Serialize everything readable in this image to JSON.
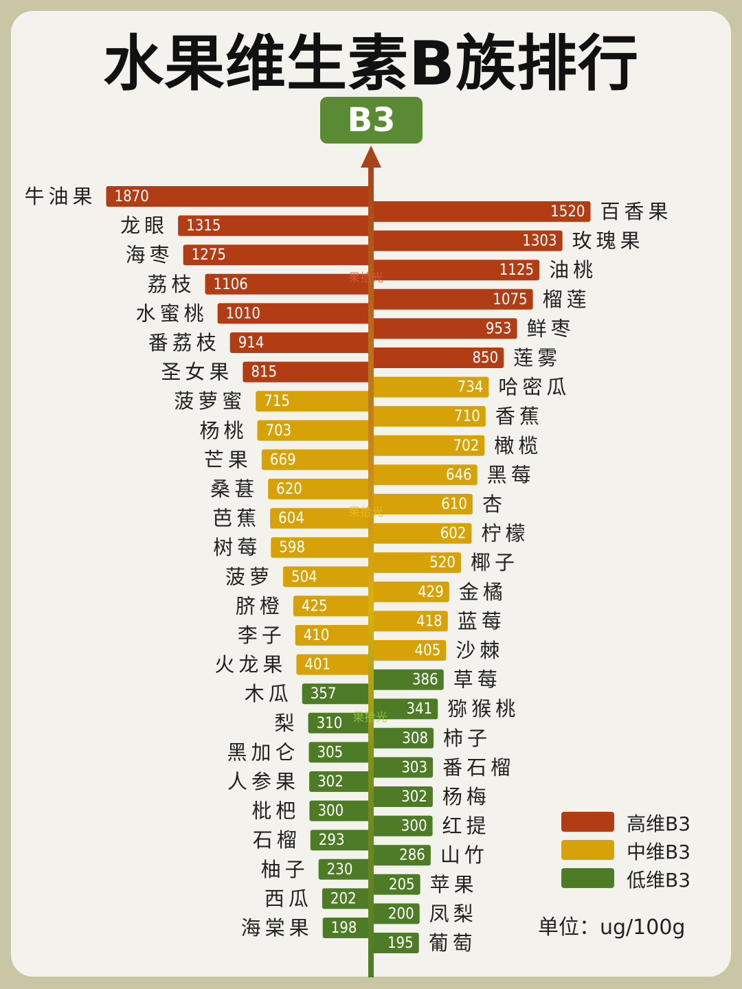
{
  "title": "水果维生素B族排行",
  "badge": "B3",
  "watermark": "果拾光",
  "unit_label": "单位：ug/100g",
  "colors": {
    "high": "#b23d15",
    "mid": "#d6a208",
    "low": "#4e7c26",
    "badge": "#5b8a35",
    "background": "#f3f2ec"
  },
  "legend": [
    {
      "label": "高维B3",
      "color": "#b23d15"
    },
    {
      "label": "中维B3",
      "color": "#d6a208"
    },
    {
      "label": "低维B3",
      "color": "#4e7c26"
    }
  ],
  "chart_data": {
    "type": "bar",
    "orientation": "horizontal-diverging",
    "title": "水果维生素B族排行",
    "unit": "ug/100g",
    "left_series": [
      {
        "name": "牛油果",
        "value": 1870,
        "level": "high"
      },
      {
        "name": "龙眼",
        "value": 1315,
        "level": "high"
      },
      {
        "name": "海枣",
        "value": 1275,
        "level": "high"
      },
      {
        "name": "荔枝",
        "value": 1106,
        "level": "high"
      },
      {
        "name": "水蜜桃",
        "value": 1010,
        "level": "high"
      },
      {
        "name": "番荔枝",
        "value": 914,
        "level": "high"
      },
      {
        "name": "圣女果",
        "value": 815,
        "level": "high"
      },
      {
        "name": "菠萝蜜",
        "value": 715,
        "level": "mid"
      },
      {
        "name": "杨桃",
        "value": 703,
        "level": "mid"
      },
      {
        "name": "芒果",
        "value": 669,
        "level": "mid"
      },
      {
        "name": "桑葚",
        "value": 620,
        "level": "mid"
      },
      {
        "name": "芭蕉",
        "value": 604,
        "level": "mid"
      },
      {
        "name": "树莓",
        "value": 598,
        "level": "mid"
      },
      {
        "name": "菠萝",
        "value": 504,
        "level": "mid"
      },
      {
        "name": "脐橙",
        "value": 425,
        "level": "mid"
      },
      {
        "name": "李子",
        "value": 410,
        "level": "mid"
      },
      {
        "name": "火龙果",
        "value": 401,
        "level": "mid"
      },
      {
        "name": "木瓜",
        "value": 357,
        "level": "low"
      },
      {
        "name": "梨",
        "value": 310,
        "level": "low"
      },
      {
        "name": "黑加仑",
        "value": 305,
        "level": "low"
      },
      {
        "name": "人参果",
        "value": 302,
        "level": "low"
      },
      {
        "name": "枇杷",
        "value": 300,
        "level": "low"
      },
      {
        "name": "石榴",
        "value": 293,
        "level": "low"
      },
      {
        "name": "柚子",
        "value": 230,
        "level": "low"
      },
      {
        "name": "西瓜",
        "value": 202,
        "level": "low"
      },
      {
        "name": "海棠果",
        "value": 198,
        "level": "low"
      }
    ],
    "right_series": [
      {
        "name": "百香果",
        "value": 1520,
        "level": "high"
      },
      {
        "name": "玫瑰果",
        "value": 1303,
        "level": "high"
      },
      {
        "name": "油桃",
        "value": 1125,
        "level": "high"
      },
      {
        "name": "榴莲",
        "value": 1075,
        "level": "high"
      },
      {
        "name": "鲜枣",
        "value": 953,
        "level": "high"
      },
      {
        "name": "莲雾",
        "value": 850,
        "level": "high"
      },
      {
        "name": "哈密瓜",
        "value": 734,
        "level": "mid"
      },
      {
        "name": "香蕉",
        "value": 710,
        "level": "mid"
      },
      {
        "name": "橄榄",
        "value": 702,
        "level": "mid"
      },
      {
        "name": "黑莓",
        "value": 646,
        "level": "mid"
      },
      {
        "name": "杏",
        "value": 610,
        "level": "mid"
      },
      {
        "name": "柠檬",
        "value": 602,
        "level": "mid"
      },
      {
        "name": "椰子",
        "value": 520,
        "level": "mid"
      },
      {
        "name": "金橘",
        "value": 429,
        "level": "mid"
      },
      {
        "name": "蓝莓",
        "value": 418,
        "level": "mid"
      },
      {
        "name": "沙棘",
        "value": 405,
        "level": "mid"
      },
      {
        "name": "草莓",
        "value": 386,
        "level": "low"
      },
      {
        "name": "猕猴桃",
        "value": 341,
        "level": "low"
      },
      {
        "name": "柿子",
        "value": 308,
        "level": "low"
      },
      {
        "name": "番石榴",
        "value": 303,
        "level": "low"
      },
      {
        "name": "杨梅",
        "value": 302,
        "level": "low"
      },
      {
        "name": "红提",
        "value": 300,
        "level": "low"
      },
      {
        "name": "山竹",
        "value": 286,
        "level": "low"
      },
      {
        "name": "苹果",
        "value": 205,
        "level": "low"
      },
      {
        "name": "凤梨",
        "value": 200,
        "level": "low"
      },
      {
        "name": "葡萄",
        "value": 195,
        "level": "low"
      }
    ]
  }
}
